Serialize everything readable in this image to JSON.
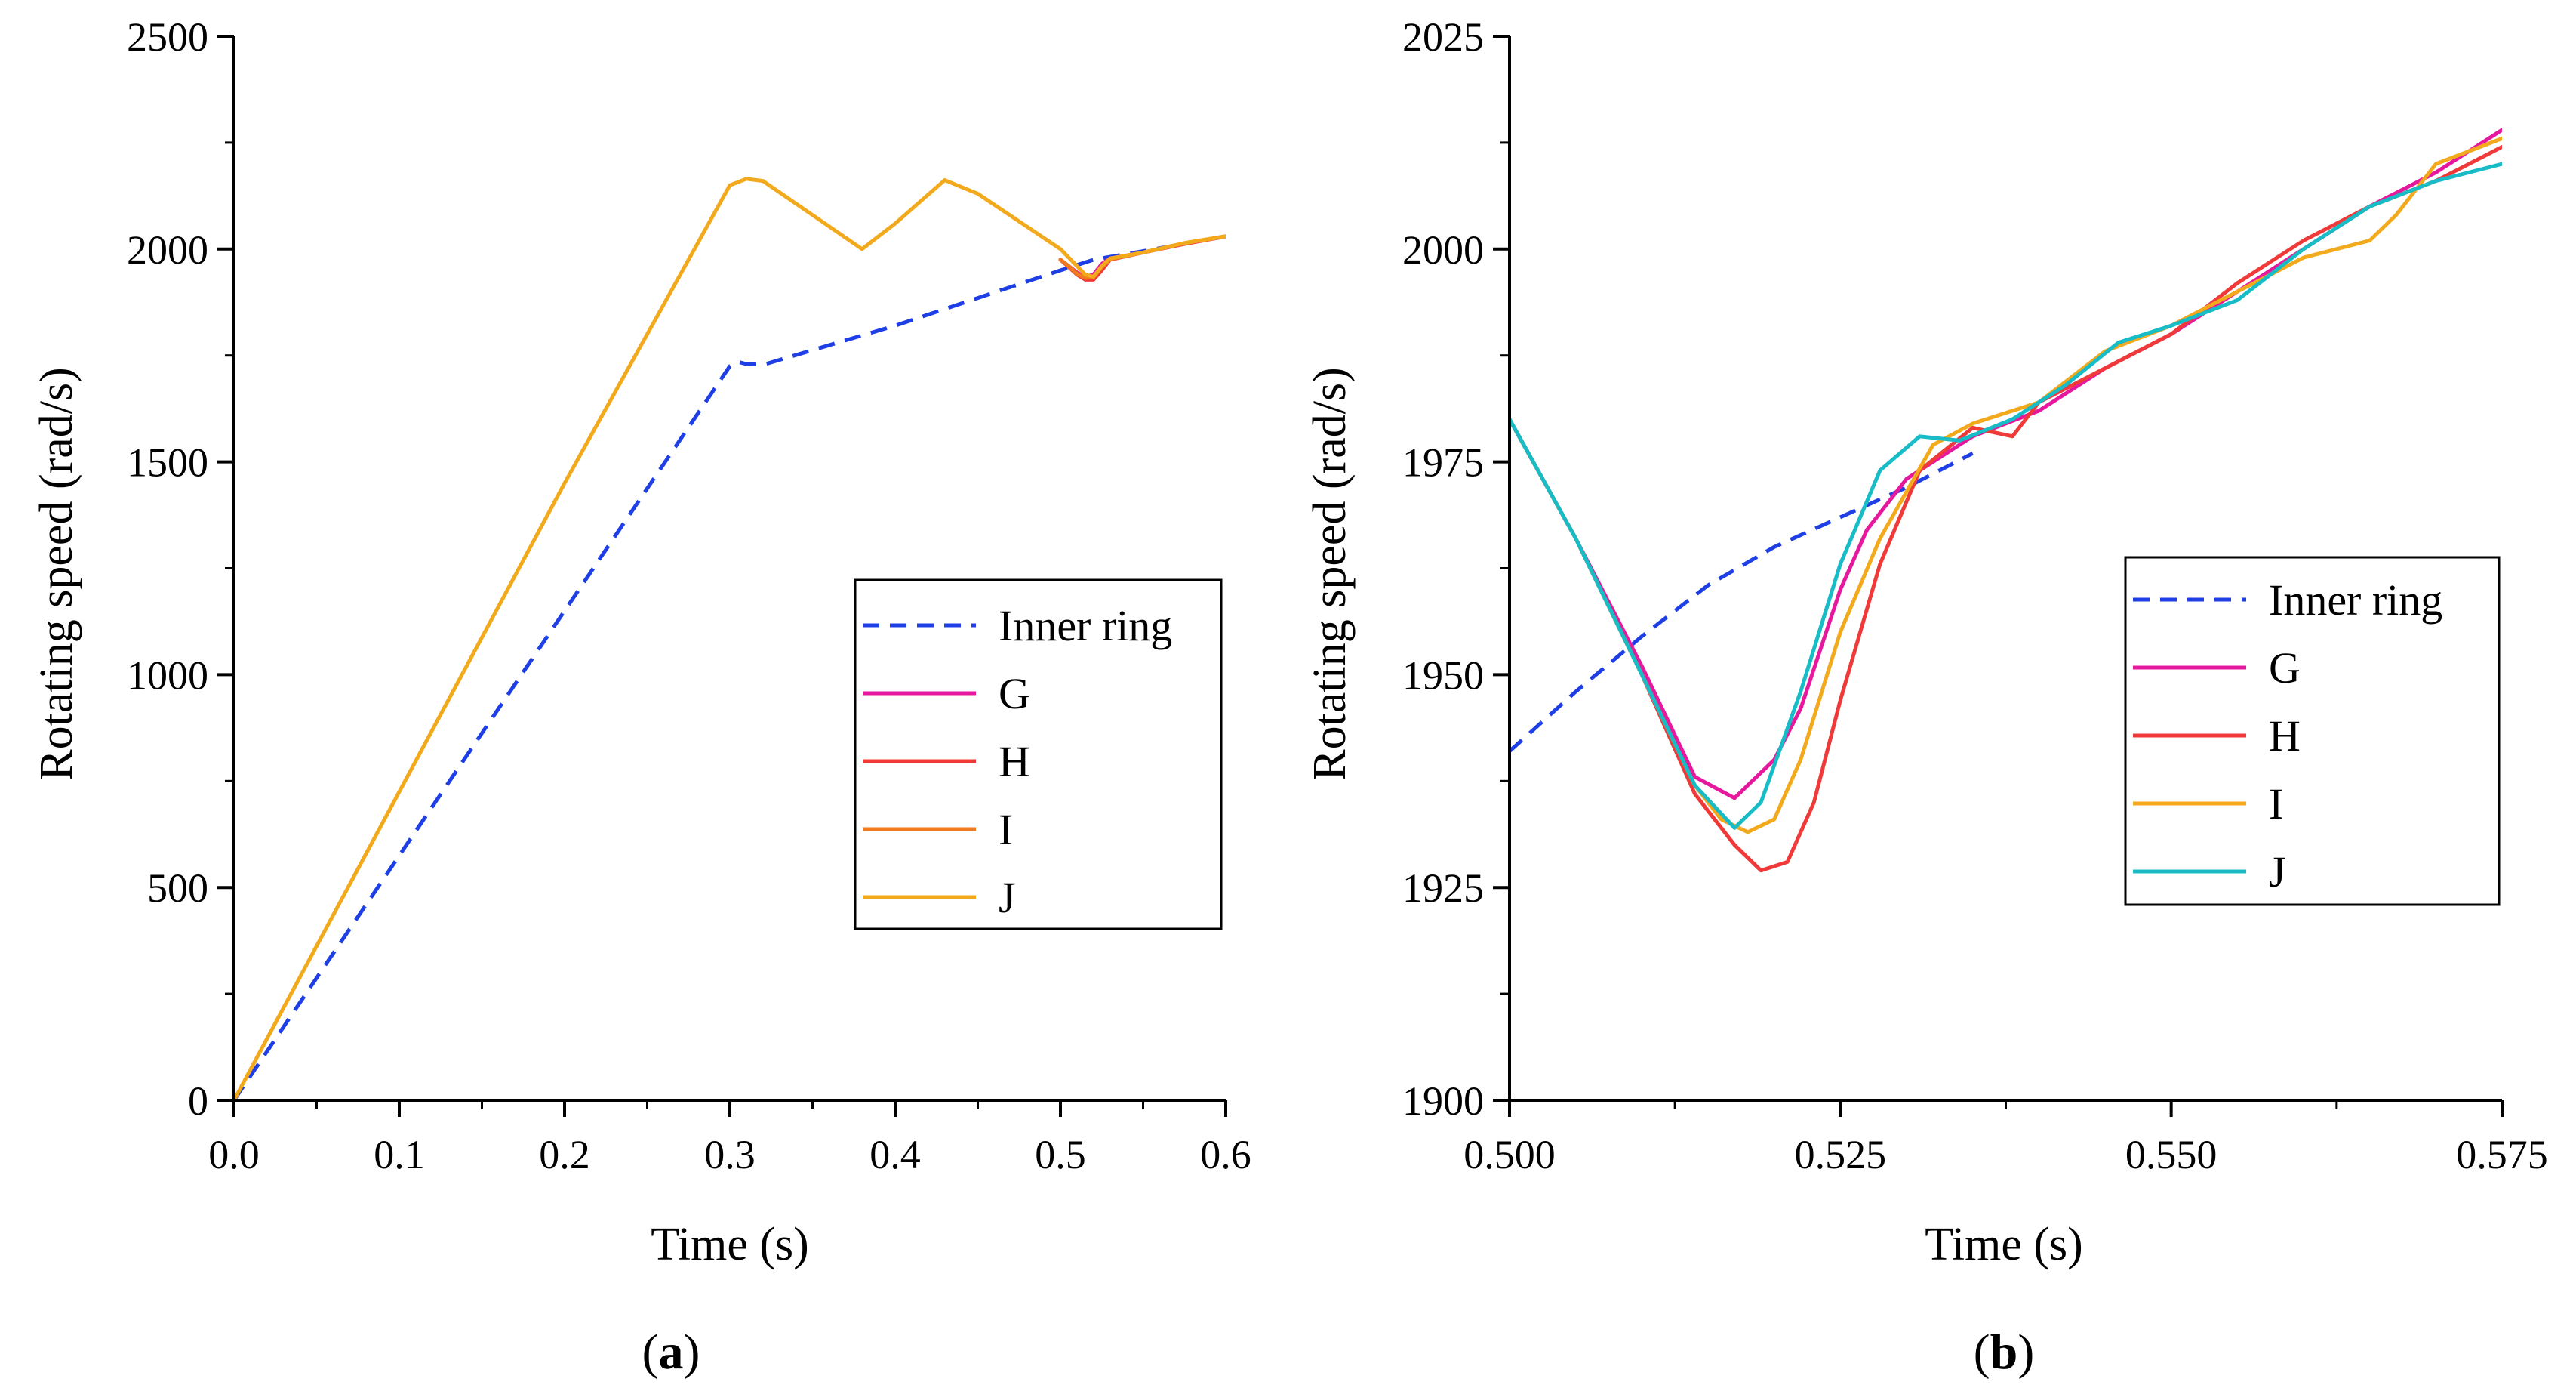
{
  "series_styles": [
    {
      "name": "Inner ring",
      "color": "#1f3fe6",
      "dash": true
    },
    {
      "name": "G",
      "color": "#e6199e",
      "dash": false
    },
    {
      "name": "H",
      "color": "#f03a3a",
      "dash": false
    },
    {
      "name": "I",
      "color": "#f07a1e",
      "dash": false
    },
    {
      "name": "J",
      "color": "#f2aa1c",
      "dash": false
    },
    {
      "name": "J_b",
      "color": "#17bcc6",
      "dash": false
    }
  ],
  "chart_data": [
    {
      "type": "line",
      "panel_label": {
        "open": "(",
        "letter": "a",
        "close": ")"
      },
      "xlabel": "Time (s)",
      "ylabel": "Rotating speed (rad/s)",
      "xlim": [
        0,
        0.6
      ],
      "ylim": [
        0,
        2500
      ],
      "xticks": [
        0.0,
        0.1,
        0.2,
        0.3,
        0.4,
        0.5,
        0.6
      ],
      "xtick_labels": [
        "0.0",
        "0.1",
        "0.2",
        "0.3",
        "0.4",
        "0.5",
        "0.6"
      ],
      "yticks": [
        0,
        500,
        1000,
        1500,
        2000,
        2500
      ],
      "ytick_labels": [
        "0",
        "500",
        "1000",
        "1500",
        "2000",
        "2500"
      ],
      "legend": {
        "position": "center-right",
        "entries": [
          "Inner ring",
          "G",
          "H",
          "I",
          "J"
        ]
      },
      "series": [
        {
          "name": "Inner ring",
          "style": 0,
          "x": [
            0,
            0.1,
            0.2,
            0.3,
            0.305,
            0.31,
            0.32,
            0.4,
            0.5,
            0.52,
            0.55,
            0.6
          ],
          "y": [
            0,
            575,
            1150,
            1725,
            1735,
            1730,
            1728,
            1820,
            1950,
            1975,
            1995,
            2030
          ]
        },
        {
          "name": "G",
          "style": 1,
          "x": [
            0.5,
            0.505,
            0.51,
            0.515,
            0.52,
            0.525,
            0.53,
            0.55,
            0.575,
            0.6
          ],
          "y": [
            1975,
            1960,
            1945,
            1935,
            1940,
            1965,
            1978,
            1992,
            2013,
            2030
          ]
        },
        {
          "name": "H",
          "style": 2,
          "x": [
            0.5,
            0.505,
            0.51,
            0.515,
            0.52,
            0.525,
            0.53,
            0.55,
            0.575,
            0.6
          ],
          "y": [
            1975,
            1958,
            1940,
            1928,
            1928,
            1950,
            1975,
            1992,
            2012,
            2030
          ]
        },
        {
          "name": "I",
          "style": 3,
          "x": [
            0.5,
            0.505,
            0.51,
            0.515,
            0.52,
            0.525,
            0.53,
            0.55,
            0.575,
            0.6
          ],
          "y": [
            1975,
            1960,
            1942,
            1932,
            1934,
            1958,
            1976,
            1992,
            2014,
            2030
          ]
        },
        {
          "name": "J",
          "style": 4,
          "x": [
            0,
            0.1,
            0.2,
            0.3,
            0.31,
            0.32,
            0.35,
            0.38,
            0.4,
            0.43,
            0.45,
            0.5,
            0.51,
            0.515,
            0.52,
            0.525,
            0.53,
            0.55,
            0.575,
            0.6
          ],
          "y": [
            0,
            725,
            1450,
            2150,
            2165,
            2160,
            2080,
            2000,
            2060,
            2162,
            2130,
            2000,
            1960,
            1940,
            1935,
            1960,
            1978,
            1992,
            2014,
            2030
          ]
        }
      ]
    },
    {
      "type": "line",
      "panel_label": {
        "open": "(",
        "letter": "b",
        "close": ")"
      },
      "xlabel": "Time (s)",
      "ylabel": "Rotating speed (rad/s)",
      "xlim": [
        0.5,
        0.575
      ],
      "ylim": [
        1900,
        2025
      ],
      "xticks": [
        0.5,
        0.525,
        0.55,
        0.575
      ],
      "xtick_labels": [
        "0.500",
        "0.525",
        "0.550",
        "0.575"
      ],
      "yticks": [
        1900,
        1925,
        1950,
        1975,
        2000,
        2025
      ],
      "ytick_labels": [
        "1900",
        "1925",
        "1950",
        "1975",
        "2000",
        "2025"
      ],
      "legend": {
        "position": "center-right",
        "entries": [
          "Inner ring",
          "G",
          "H",
          "I",
          "J"
        ]
      },
      "series": [
        {
          "name": "Inner ring",
          "style": 0,
          "x": [
            0.5,
            0.505,
            0.51,
            0.515,
            0.52,
            0.525,
            0.53,
            0.535
          ],
          "y": [
            1941,
            1948,
            1954.5,
            1960.5,
            1965,
            1968.5,
            1972,
            1976
          ]
        },
        {
          "name": "G",
          "style": 1,
          "x": [
            0.5,
            0.505,
            0.51,
            0.514,
            0.517,
            0.52,
            0.522,
            0.525,
            0.527,
            0.53,
            0.535,
            0.54,
            0.545,
            0.55,
            0.555,
            0.56,
            0.565,
            0.57,
            0.575
          ],
          "y": [
            1980,
            1966,
            1951,
            1938,
            1935.5,
            1940,
            1946,
            1960,
            1967,
            1973,
            1978,
            1981,
            1986,
            1990,
            1995,
            2000,
            2005,
            2009,
            2014
          ]
        },
        {
          "name": "H",
          "style": 2,
          "x": [
            0.5,
            0.505,
            0.51,
            0.514,
            0.517,
            0.519,
            0.521,
            0.523,
            0.525,
            0.528,
            0.531,
            0.535,
            0.538,
            0.54,
            0.545,
            0.55,
            0.555,
            0.56,
            0.565,
            0.57,
            0.575
          ],
          "y": [
            1980,
            1966,
            1950,
            1936,
            1930,
            1927,
            1928,
            1935,
            1947,
            1963,
            1974,
            1979,
            1978,
            1982,
            1986,
            1990,
            1996,
            2001,
            2005,
            2008,
            2012
          ]
        },
        {
          "name": "I",
          "style": 4,
          "x": [
            0.5,
            0.505,
            0.51,
            0.514,
            0.516,
            0.518,
            0.52,
            0.522,
            0.525,
            0.528,
            0.532,
            0.535,
            0.54,
            0.545,
            0.55,
            0.555,
            0.56,
            0.565,
            0.567,
            0.57,
            0.575
          ],
          "y": [
            1980,
            1966,
            1950,
            1937,
            1933,
            1931.5,
            1933,
            1940,
            1955,
            1966,
            1977,
            1979.5,
            1982,
            1988,
            1991,
            1995,
            1999,
            2001,
            2004,
            2010,
            2013
          ]
        },
        {
          "name": "J",
          "style": 5,
          "x": [
            0.5,
            0.505,
            0.51,
            0.514,
            0.517,
            0.519,
            0.522,
            0.525,
            0.528,
            0.531,
            0.534,
            0.538,
            0.542,
            0.546,
            0.55,
            0.555,
            0.56,
            0.565,
            0.57,
            0.575
          ],
          "y": [
            1980,
            1966,
            1950,
            1937,
            1932,
            1935,
            1948,
            1963,
            1974,
            1978,
            1977.5,
            1980,
            1984,
            1989,
            1991,
            1994,
            2000,
            2005,
            2008,
            2010
          ]
        }
      ]
    }
  ]
}
